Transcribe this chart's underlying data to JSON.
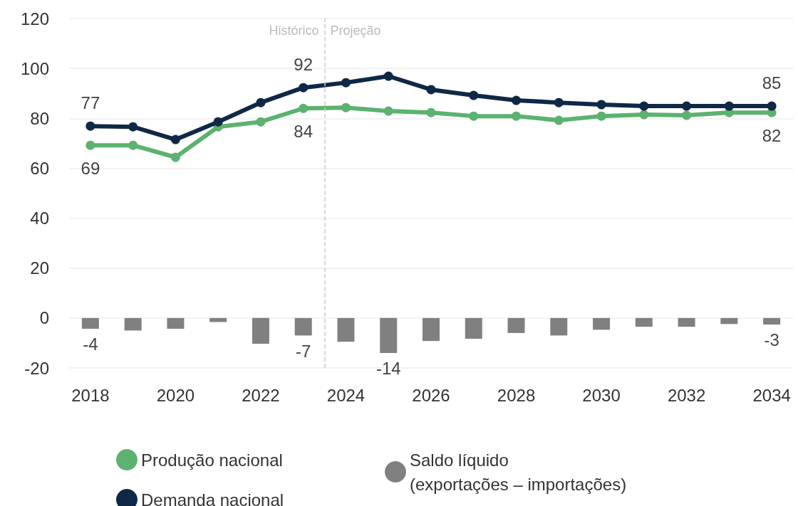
{
  "chart_data": {
    "type": "line",
    "x": [
      2018,
      2019,
      2020,
      2021,
      2022,
      2023,
      2024,
      2025,
      2026,
      2027,
      2028,
      2029,
      2030,
      2031,
      2032,
      2033,
      2034
    ],
    "xlim": [
      2017.5,
      2034.5
    ],
    "xticks": [
      2018,
      2020,
      2022,
      2024,
      2026,
      2028,
      2030,
      2032,
      2034
    ],
    "ylim": [
      -20,
      120
    ],
    "yticks": [
      -20,
      0,
      20,
      40,
      60,
      80,
      100,
      120
    ],
    "grid": "y",
    "legend": "bottom",
    "marker": "circle",
    "series": [
      {
        "name": "Produção nacional",
        "color": "#5cb270",
        "values": [
          69.2,
          69.2,
          64.4,
          76.6,
          78.6,
          84,
          84.3,
          82.9,
          82.3,
          80.9,
          80.9,
          79.2,
          80.9,
          81.5,
          81.2,
          82.3,
          82.3
        ],
        "value_labels": [
          "69",
          null,
          null,
          null,
          null,
          "84",
          null,
          null,
          null,
          null,
          null,
          null,
          null,
          null,
          null,
          null,
          "82"
        ]
      },
      {
        "name": "Demanda nacional",
        "color": "#0f2846",
        "values": [
          76.9,
          76.6,
          71.5,
          78.6,
          86.3,
          92.3,
          94.3,
          96.9,
          91.5,
          89.2,
          87.2,
          86.3,
          85.5,
          84.9,
          84.9,
          84.9,
          84.9
        ],
        "value_labels": [
          "77",
          null,
          null,
          null,
          null,
          "92",
          null,
          null,
          null,
          null,
          null,
          null,
          null,
          null,
          null,
          null,
          "85"
        ]
      },
      {
        "name": "Saldo líquido (exportações – importações)",
        "type": "bar",
        "color": "#808080",
        "values": [
          -4.3,
          -5,
          -4.3,
          -1.6,
          -10.3,
          -7,
          -9.5,
          -14,
          -9.2,
          -8.3,
          -6,
          -7,
          -4.7,
          -3.5,
          -3.5,
          -2.4,
          -2.6
        ],
        "value_labels": [
          "-4",
          null,
          null,
          null,
          null,
          "-7",
          null,
          "-14",
          null,
          null,
          null,
          null,
          null,
          null,
          null,
          null,
          "-3"
        ]
      }
    ],
    "ref_lines": [
      {
        "axis": "x",
        "value": 2023.5,
        "label": null,
        "color": "#cccccc",
        "line_style": "dashed"
      }
    ],
    "annotations": [
      "Histórico",
      "Projeção"
    ]
  }
}
